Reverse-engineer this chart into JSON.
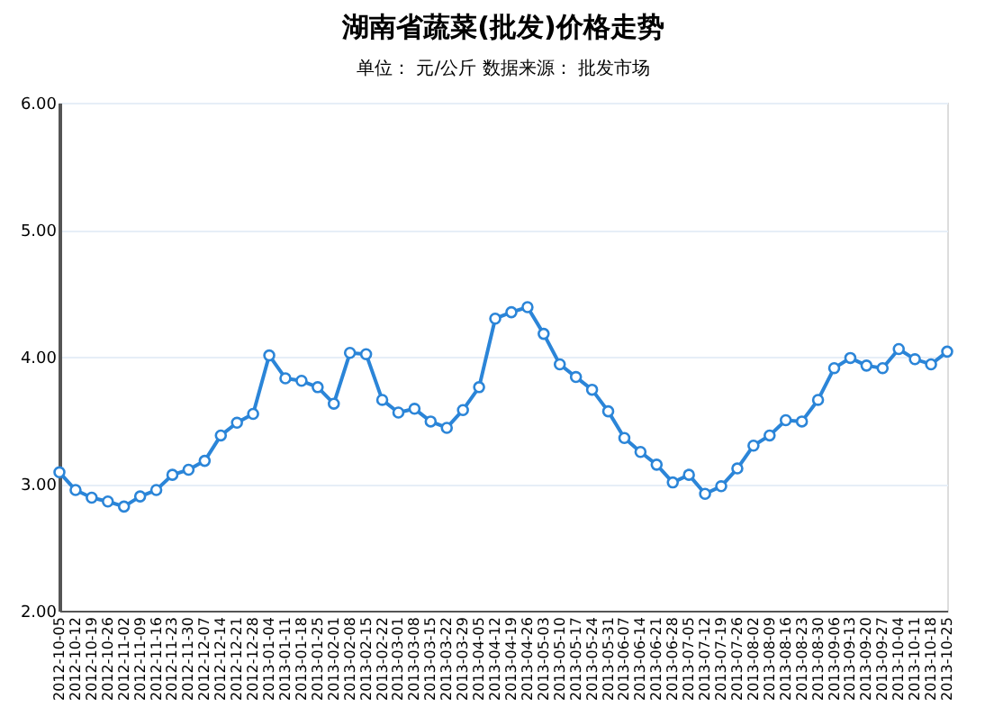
{
  "chart_data": {
    "type": "line",
    "title": "湖南省蔬菜(批发)价格走势",
    "subtitle": "单位： 元/公斤      数据来源： 批发市场",
    "categories": [
      "2012-10-05",
      "2012-10-12",
      "2012-10-19",
      "2012-10-26",
      "2012-11-02",
      "2012-11-09",
      "2012-11-16",
      "2012-11-23",
      "2012-11-30",
      "2012-12-07",
      "2012-12-14",
      "2012-12-21",
      "2012-12-28",
      "2013-01-04",
      "2013-01-11",
      "2013-01-18",
      "2013-01-25",
      "2013-02-01",
      "2013-02-08",
      "2013-02-15",
      "2013-02-22",
      "2013-03-01",
      "2013-03-08",
      "2013-03-15",
      "2013-03-22",
      "2013-03-29",
      "2013-04-05",
      "2013-04-12",
      "2013-04-19",
      "2013-04-26",
      "2013-05-03",
      "2013-05-10",
      "2013-05-17",
      "2013-05-24",
      "2013-05-31",
      "2013-06-07",
      "2013-06-14",
      "2013-06-21",
      "2013-06-28",
      "2013-07-05",
      "2013-07-12",
      "2013-07-19",
      "2013-07-26",
      "2013-08-02",
      "2013-08-09",
      "2013-08-16",
      "2013-08-23",
      "2013-08-30",
      "2013-09-06",
      "2013-09-13",
      "2013-09-20",
      "2013-09-27",
      "2013-10-04",
      "2013-10-11",
      "2013-10-18",
      "2013-10-25"
    ],
    "series": [
      {
        "color": "#2b85d8",
        "values": [
          3.09,
          2.95,
          2.89,
          2.86,
          2.82,
          2.9,
          2.95,
          3.07,
          3.11,
          3.18,
          3.38,
          3.48,
          3.55,
          4.01,
          3.83,
          3.81,
          3.76,
          3.63,
          4.03,
          4.02,
          3.66,
          3.56,
          3.59,
          3.49,
          3.44,
          3.58,
          3.76,
          4.3,
          4.35,
          4.39,
          4.18,
          3.94,
          3.84,
          3.74,
          3.57,
          3.36,
          3.25,
          3.15,
          3.01,
          3.07,
          2.92,
          2.98,
          3.12,
          3.3,
          3.38,
          3.5,
          3.49,
          3.66,
          3.91,
          3.99,
          3.93,
          3.91,
          4.06,
          3.98,
          3.94,
          4.04
        ]
      }
    ],
    "ylim": [
      2,
      6
    ],
    "yticks": [
      {
        "value": 2,
        "label": "2.00"
      },
      {
        "value": 3,
        "label": "3.00"
      },
      {
        "value": 4,
        "label": "4.00"
      },
      {
        "value": 5,
        "label": "5.00"
      },
      {
        "value": 6,
        "label": "6.00"
      }
    ],
    "grid": "y",
    "marker": "circle",
    "line_style": "solid"
  }
}
